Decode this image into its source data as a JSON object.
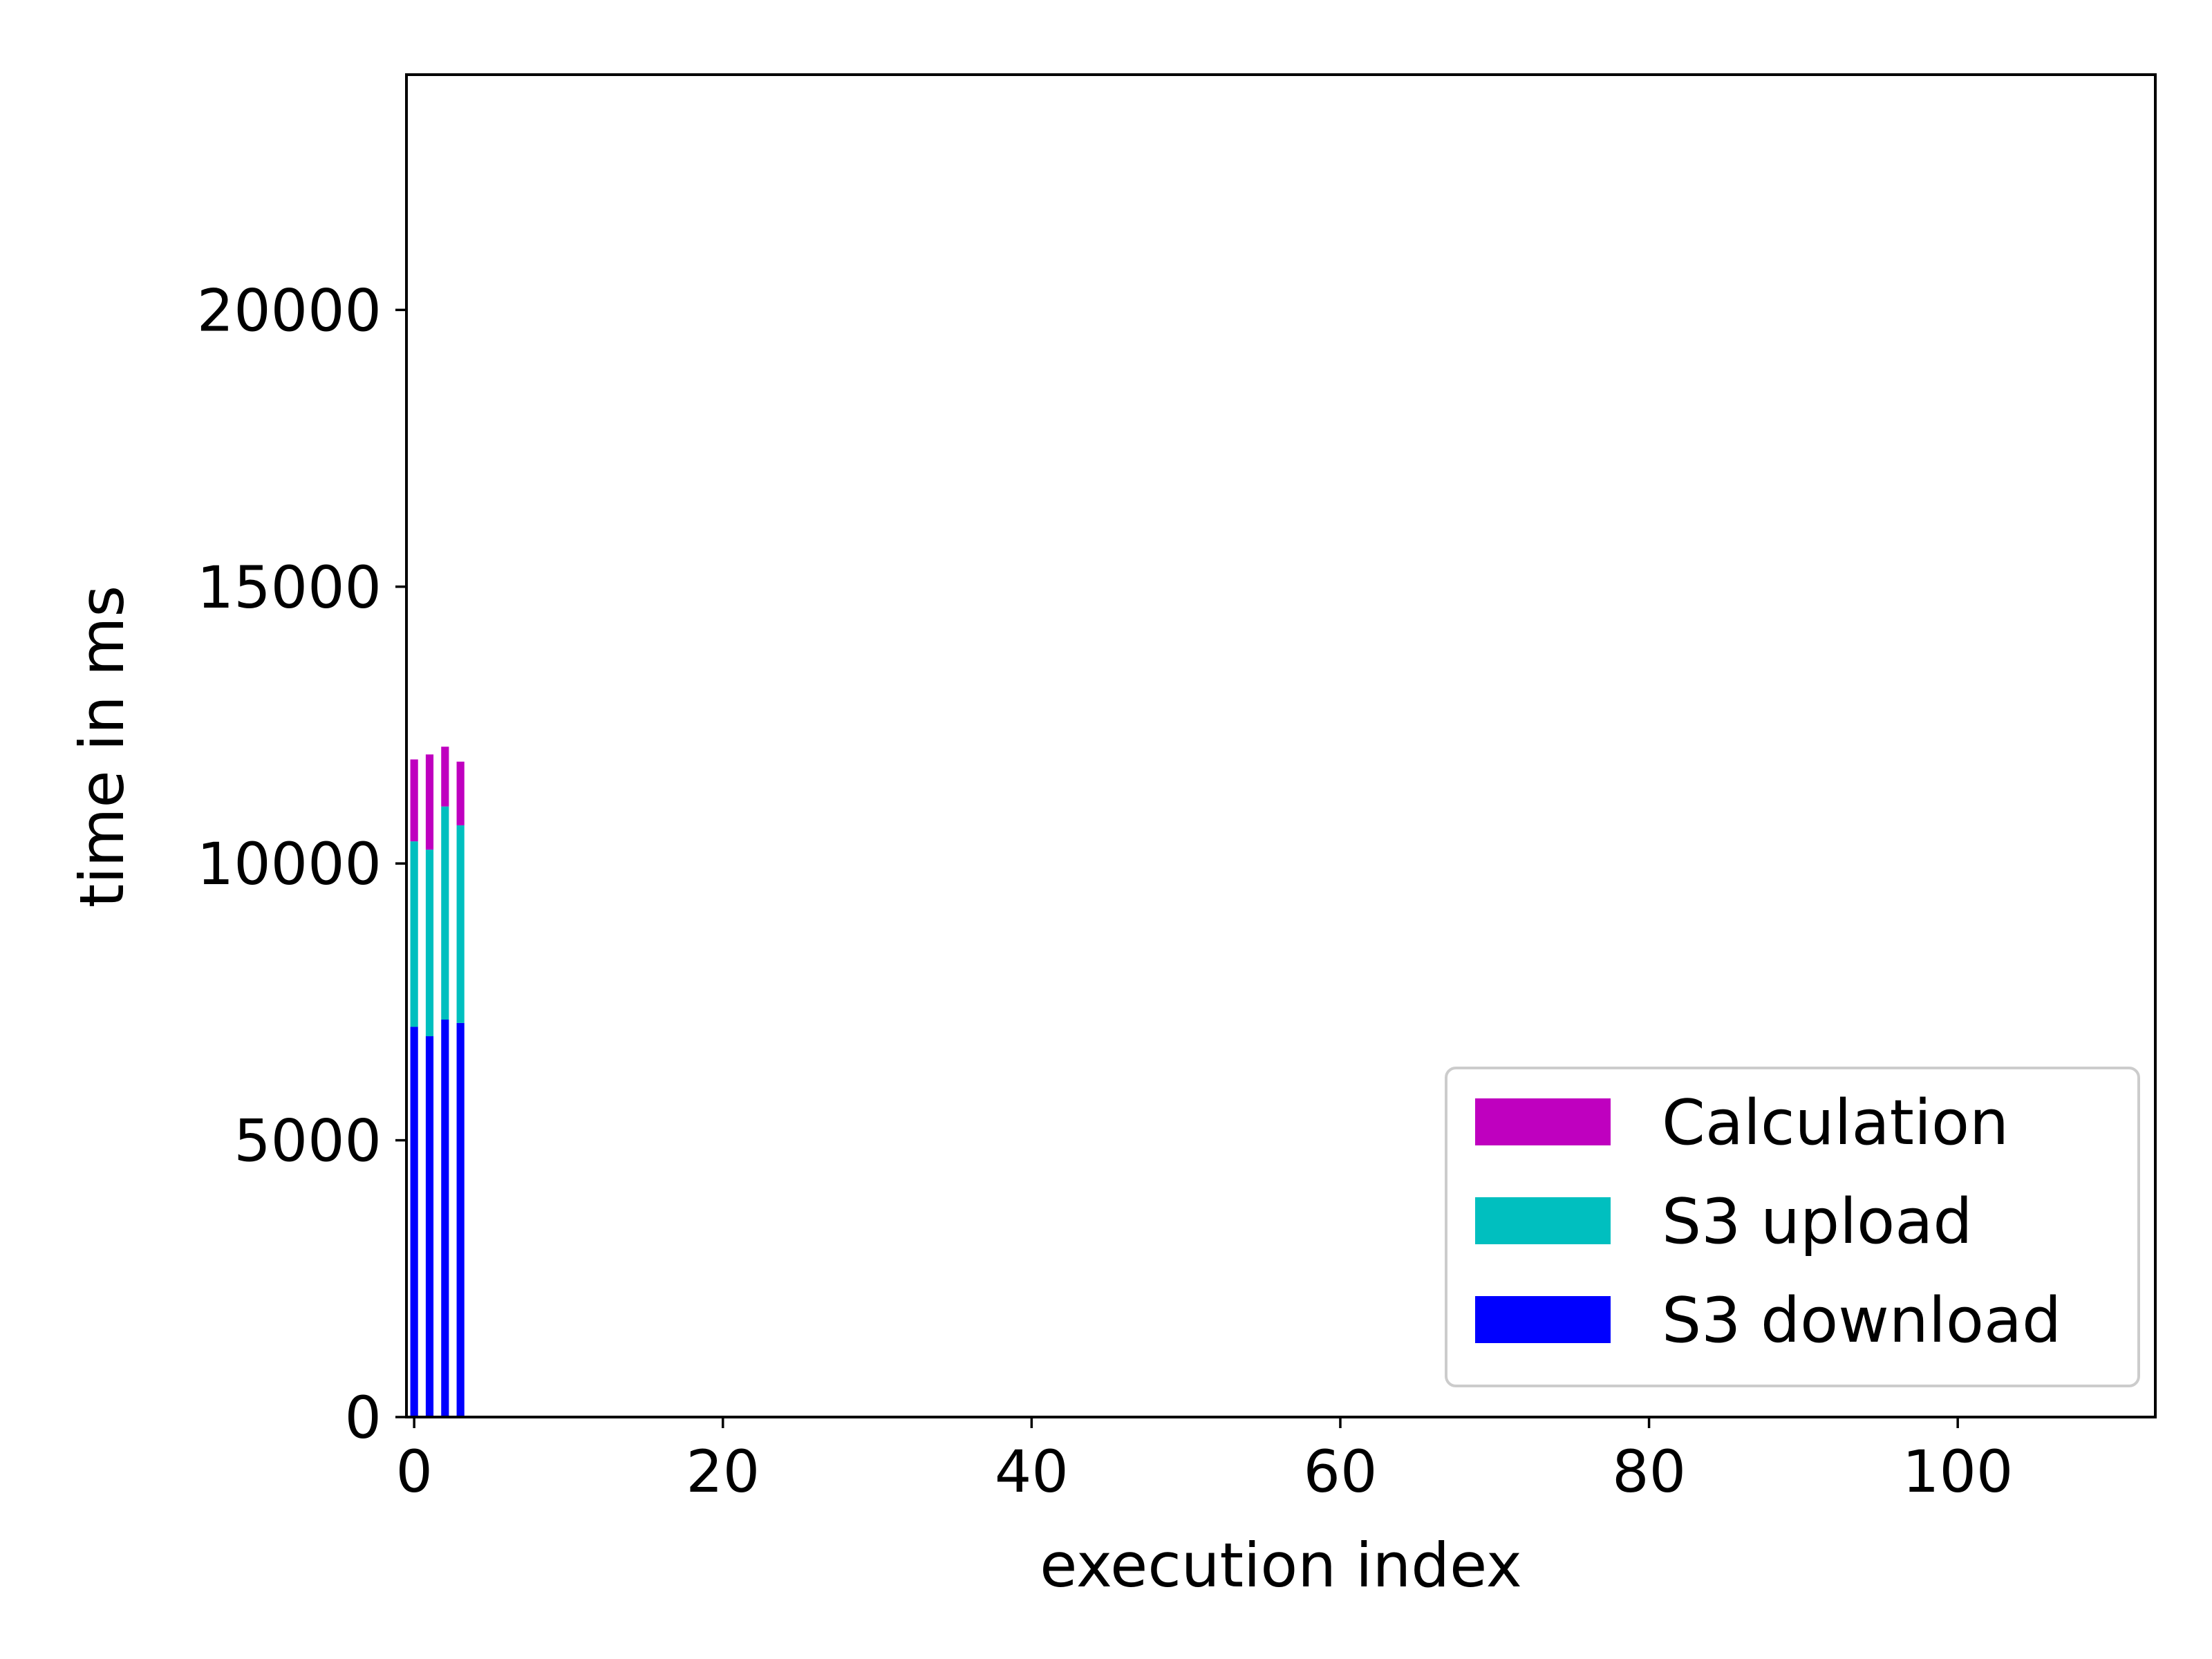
{
  "chart_data": {
    "type": "bar",
    "stacked": true,
    "title": "",
    "xlabel": "execution index",
    "ylabel": "time in ms",
    "xlim": [
      -0.5,
      112.8
    ],
    "ylim": [
      0,
      24250
    ],
    "x": [
      0,
      1,
      2,
      3
    ],
    "bar_width": 0.5,
    "xticks": [
      0,
      20,
      40,
      60,
      80,
      100
    ],
    "yticks": [
      0,
      5000,
      10000,
      15000,
      20000
    ],
    "grid": false,
    "legend": {
      "position": "lower right"
    },
    "series": [
      {
        "name": "S3 download",
        "color": "#0000ff",
        "values": [
          7050,
          6880,
          7180,
          7120
        ]
      },
      {
        "name": "S3 upload",
        "color": "#00bfbf",
        "values": [
          3350,
          3370,
          3850,
          3570
        ]
      },
      {
        "name": "Calculation",
        "color": "#bf00bf",
        "values": [
          1480,
          1720,
          1080,
          1150
        ]
      }
    ]
  }
}
